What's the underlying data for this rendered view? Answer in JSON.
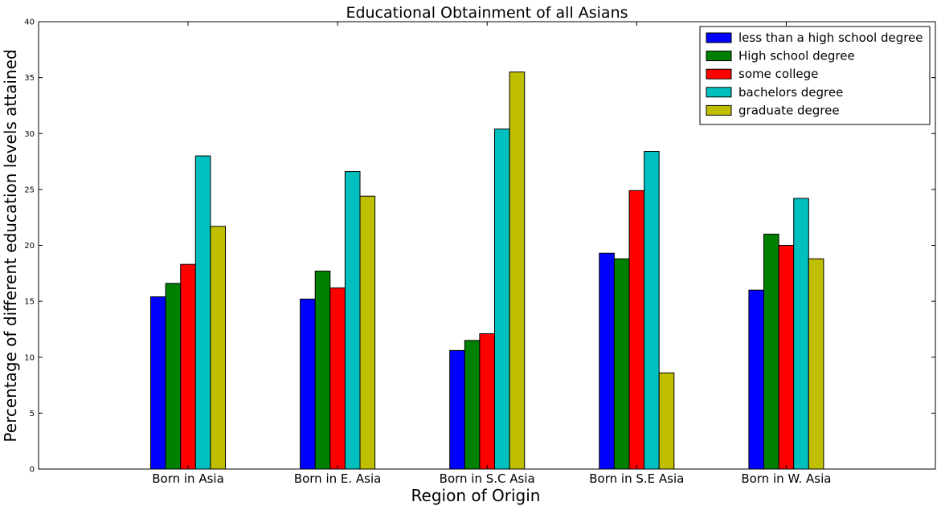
{
  "chart_data": {
    "type": "bar",
    "title": "Educational Obtainment of all Asians",
    "xlabel": "Region of Origin",
    "ylabel": "Percentage of different education levels attained",
    "categories": [
      "Born in Asia",
      "Born in E. Asia",
      "Born in S.C Asia",
      "Born in S.E Asia",
      "Born in W. Asia"
    ],
    "ylim": [
      0,
      40
    ],
    "yticks": [
      0,
      5,
      10,
      15,
      20,
      25,
      30,
      35,
      40
    ],
    "grid": false,
    "legend_position": "top-right",
    "series": [
      {
        "name": "less than a high school degree",
        "color": "#0000ff",
        "values": [
          15.4,
          15.2,
          10.6,
          19.3,
          16.0
        ]
      },
      {
        "name": "High school degree",
        "color": "#008000",
        "values": [
          16.6,
          17.7,
          11.5,
          18.8,
          21.0
        ]
      },
      {
        "name": "some college",
        "color": "#ff0000",
        "values": [
          18.3,
          16.2,
          12.1,
          24.9,
          20.0
        ]
      },
      {
        "name": "bachelors degree",
        "color": "#00bfbf",
        "values": [
          28.0,
          26.6,
          30.4,
          28.4,
          24.2
        ]
      },
      {
        "name": "graduate degree",
        "color": "#bfbf00",
        "values": [
          21.7,
          24.4,
          35.5,
          8.6,
          18.8
        ]
      }
    ]
  }
}
